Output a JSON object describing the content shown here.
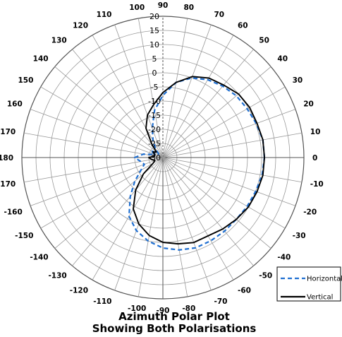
{
  "chart_data": {
    "type": "polar-line",
    "title": "Azimuth Polar Plot",
    "subtitle": "Showing Both Polarisations",
    "angle_unit": "degrees",
    "r_range": [
      -30,
      20
    ],
    "r_ticks": [
      "20",
      "15",
      "10",
      "5",
      "0",
      "-5",
      "-10",
      "-15",
      "-20",
      "-25",
      "-30"
    ],
    "angle_ticks": [
      {
        "angle": 90,
        "label": "90"
      },
      {
        "angle": 80,
        "label": "80"
      },
      {
        "angle": 70,
        "label": "70"
      },
      {
        "angle": 60,
        "label": "60"
      },
      {
        "angle": 50,
        "label": "50"
      },
      {
        "angle": 40,
        "label": "40"
      },
      {
        "angle": 30,
        "label": "30"
      },
      {
        "angle": 20,
        "label": "20"
      },
      {
        "angle": 10,
        "label": "10"
      },
      {
        "angle": 0,
        "label": "0"
      },
      {
        "angle": -10,
        "label": "-10"
      },
      {
        "angle": -20,
        "label": "-20"
      },
      {
        "angle": -30,
        "label": "-30"
      },
      {
        "angle": -40,
        "label": "-40"
      },
      {
        "angle": -50,
        "label": "-50"
      },
      {
        "angle": -60,
        "label": "-60"
      },
      {
        "angle": -70,
        "label": "-70"
      },
      {
        "angle": -80,
        "label": "-80"
      },
      {
        "angle": -90,
        "label": "-90"
      },
      {
        "angle": -100,
        "label": "-100"
      },
      {
        "angle": -110,
        "label": "-110"
      },
      {
        "angle": -120,
        "label": "-120"
      },
      {
        "angle": -130,
        "label": "-130"
      },
      {
        "angle": -140,
        "label": "-140"
      },
      {
        "angle": -150,
        "label": "-150"
      },
      {
        "angle": -160,
        "label": "-160"
      },
      {
        "angle": -170,
        "label": "-170"
      },
      {
        "angle": 180,
        "label": "180"
      },
      {
        "angle": 170,
        "label": "170"
      },
      {
        "angle": 160,
        "label": "160"
      },
      {
        "angle": 150,
        "label": "150"
      },
      {
        "angle": 140,
        "label": "140"
      },
      {
        "angle": 130,
        "label": "130"
      },
      {
        "angle": 120,
        "label": "120"
      },
      {
        "angle": 110,
        "label": "110"
      },
      {
        "angle": 100,
        "label": "100"
      }
    ],
    "legend_position": "bottom-right",
    "series": [
      {
        "name": "Horizontal",
        "color": "#1f6fd1",
        "style": "dashed",
        "angles": [
          0,
          10,
          20,
          30,
          40,
          50,
          60,
          70,
          80,
          90,
          100,
          110,
          120,
          130,
          140,
          150,
          160,
          170,
          180,
          -170,
          -160,
          -150,
          -140,
          -130,
          -120,
          -110,
          -100,
          -90,
          -80,
          -70,
          -60,
          -50,
          -40,
          -30,
          -20,
          -10
        ],
        "values": [
          6,
          6,
          5.2,
          4.5,
          4,
          3,
          1.8,
          0,
          -3,
          -8,
          -13,
          -19,
          -23,
          -26,
          -28,
          -25,
          -27,
          -23,
          -20,
          -22,
          -23,
          -21,
          -17,
          -12,
          -6,
          -2.5,
          0,
          2,
          3.2,
          4,
          4,
          4,
          4,
          4.5,
          5,
          5.7
        ]
      },
      {
        "name": "Vertical",
        "color": "#000000",
        "style": "solid",
        "angles": [
          0,
          10,
          20,
          30,
          40,
          50,
          60,
          70,
          80,
          90,
          100,
          110,
          120,
          130,
          140,
          150,
          160,
          170,
          180,
          -170,
          -160,
          -150,
          -140,
          -130,
          -120,
          -110,
          -100,
          -90,
          -80,
          -70,
          -60,
          -50,
          -40,
          -30,
          -20,
          -10
        ],
        "values": [
          6,
          6,
          5.5,
          5.5,
          5,
          3.5,
          2.5,
          0.5,
          -3,
          -7,
          -11,
          -14,
          -18,
          -24,
          -27,
          -26,
          -27,
          -27,
          -25,
          -26,
          -27,
          -26,
          -21,
          -15,
          -9,
          -5,
          -2,
          0,
          1,
          2,
          2,
          3,
          4,
          5,
          5.5,
          6
        ]
      }
    ]
  }
}
